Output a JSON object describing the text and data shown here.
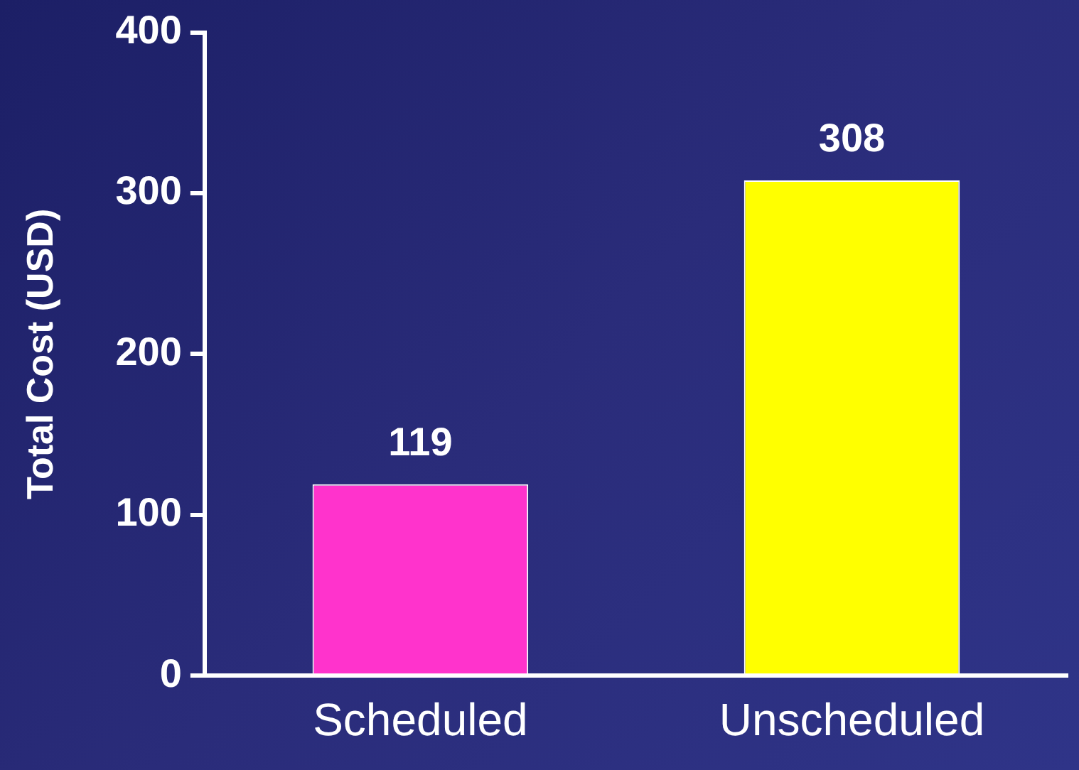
{
  "chart_data": {
    "type": "bar",
    "ylabel": "Total Cost (USD)",
    "categories": [
      "Scheduled",
      "Unscheduled"
    ],
    "colors": [
      "#ff33cc",
      "#ffff00"
    ],
    "values": [
      119,
      308
    ],
    "ylim": [
      0,
      400
    ],
    "yticks": [
      0,
      100,
      200,
      300,
      400
    ],
    "grid": false,
    "legend": false,
    "data_labels": true
  }
}
